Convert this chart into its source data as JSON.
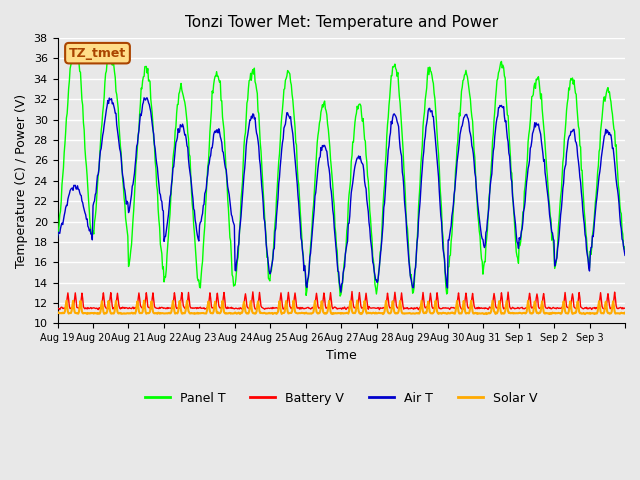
{
  "title": "Tonzi Tower Met: Temperature and Power",
  "xlabel": "Time",
  "ylabel": "Temperature (C) / Power (V)",
  "ylim": [
    10,
    38
  ],
  "yticks": [
    10,
    12,
    14,
    16,
    18,
    20,
    22,
    24,
    26,
    28,
    30,
    32,
    34,
    36,
    38
  ],
  "bg_color": "#e8e8e8",
  "plot_bg_color": "#e8e8e8",
  "grid_color": "#ffffff",
  "annotation_text": "TZ_tmet",
  "annotation_bg": "#ffdd88",
  "annotation_border": "#aa4400",
  "colors": {
    "panel_t": "#00ff00",
    "battery_v": "#ff0000",
    "air_t": "#0000cc",
    "solar_v": "#ffaa00"
  },
  "legend_labels": [
    "Panel T",
    "Battery V",
    "Air T",
    "Solar V"
  ],
  "n_days": 16,
  "panel_t_max_vals": [
    37.5,
    36.5,
    35.0,
    33.0,
    34.5,
    35.0,
    34.5,
    31.5,
    31.5,
    35.5,
    35.0,
    34.5,
    35.5,
    34.0,
    34.0,
    33.0
  ],
  "panel_t_min_vals": [
    18.5,
    19.0,
    15.5,
    14.0,
    13.5,
    14.0,
    15.0,
    13.0,
    13.5,
    13.5,
    13.0,
    15.5,
    15.5,
    17.5,
    15.5,
    17.0
  ],
  "air_t_max_vals": [
    23.5,
    32.0,
    32.0,
    29.5,
    29.0,
    30.5,
    30.5,
    27.5,
    26.5,
    30.5,
    31.0,
    30.5,
    31.5,
    29.5,
    29.0,
    29.0
  ],
  "air_t_min_vals": [
    18.5,
    21.5,
    21.0,
    18.0,
    19.5,
    15.0,
    15.0,
    13.5,
    14.0,
    14.0,
    13.5,
    18.0,
    17.5,
    18.0,
    15.5,
    17.0
  ],
  "battery_v_base": 11.5,
  "battery_v_spike": 13.0,
  "solar_v_base": 11.0,
  "solar_v_spike": 12.2,
  "xticklabels": [
    "Aug 19",
    "Aug 20",
    "Aug 21",
    "Aug 22",
    "Aug 23",
    "Aug 24",
    "Aug 25",
    "Aug 26",
    "Aug 27",
    "Aug 28",
    "Aug 29",
    "Aug 30",
    "Aug 31",
    "Sep 1",
    "Sep 2",
    "Sep 3"
  ]
}
